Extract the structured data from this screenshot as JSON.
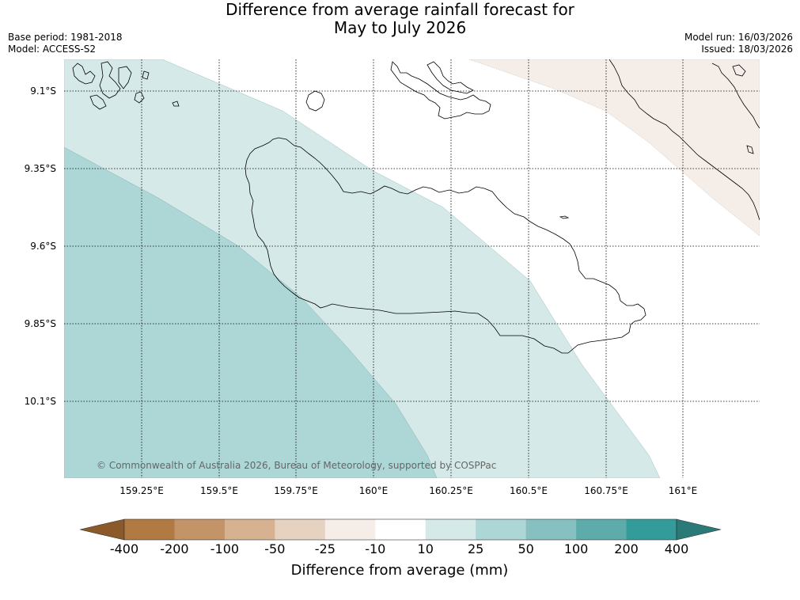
{
  "title": {
    "line1": "Difference from average rainfall forecast for",
    "line2": "May to July 2026"
  },
  "meta": {
    "base_period": "Base period: 1981-2018",
    "model": "Model: ACCESS-S2",
    "model_run": "Model run: 16/03/2026",
    "issued": "Issued: 18/03/2026"
  },
  "map": {
    "lat_labels": [
      "9.1°S",
      "9.35°S",
      "9.6°S",
      "9.85°S",
      "10.1°S"
    ],
    "lon_labels": [
      "159.25°E",
      "159.5°E",
      "159.75°E",
      "160°E",
      "160.25°E",
      "160.5°E",
      "160.75°E",
      "161°E"
    ],
    "copyright": "© Commonwealth of Australia 2026, Bureau of Meteorology, supported by COSPPac",
    "regions": [
      {
        "name": "25 to 50 mm above average",
        "color": "#add6d6"
      },
      {
        "name": "10 to 25 mm above average",
        "color": "#d5e9e9"
      },
      {
        "name": "-10 to 10 mm",
        "color": "#ffffff"
      },
      {
        "name": "-25 to -10 mm below average",
        "color": "#f5ede8"
      }
    ]
  },
  "colorbar": {
    "title": "Difference from average (mm)",
    "labels": [
      "-400",
      "-200",
      "-100",
      "-50",
      "-25",
      "-10",
      "10",
      "25",
      "50",
      "100",
      "200",
      "400"
    ],
    "colors": [
      "#8c5a2a",
      "#b07a42",
      "#c39467",
      "#d6b291",
      "#e6d2c0",
      "#f5ede8",
      "#ffffff",
      "#d5e9e9",
      "#add6d6",
      "#86c0c0",
      "#5dabab",
      "#339b99",
      "#2a7a78"
    ]
  }
}
